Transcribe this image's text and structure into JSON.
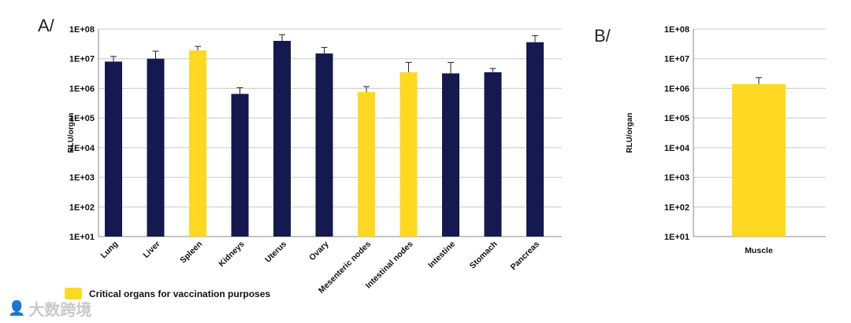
{
  "labels": {
    "panel_a": "A/",
    "panel_b": "B/"
  },
  "legend": {
    "label": "Critical organs for vaccination purposes",
    "color": "#FFD921"
  },
  "colors": {
    "navy": "#141A4F",
    "yellow": "#FFD921",
    "grid": "#c8c8c8",
    "axis": "#888888"
  },
  "watermark": {
    "text": "大数跨境",
    "icon": "logo-glyph"
  },
  "chart_data": [
    {
      "type": "bar",
      "panel": "A/",
      "ylabel": "RLU/organ",
      "scale": "log",
      "ylim": [
        10.0,
        100000000.0
      ],
      "yticks": [
        "1E+01",
        "1E+02",
        "1E+03",
        "1E+04",
        "1E+05",
        "1E+06",
        "1E+07",
        "1E+08"
      ],
      "grid": true,
      "categories": [
        "Lung",
        "Liver",
        "Spleen",
        "Kidneys",
        "Uterus",
        "Ovary",
        "Mesenteric nodes",
        "Intestinal nodes",
        "Intestine",
        "Stomach",
        "Pancreas"
      ],
      "values": [
        8000000,
        10000000,
        19000000,
        650000,
        40000000,
        15000000,
        750000,
        3500000,
        3200000,
        3500000,
        36000000
      ],
      "error_upper": [
        12000000,
        18000000,
        26000000,
        1050000,
        65000000,
        24000000,
        1150000,
        7500000,
        7500000,
        4700000,
        60000000
      ],
      "highlight": [
        false,
        false,
        true,
        false,
        false,
        false,
        true,
        true,
        false,
        false,
        false
      ]
    },
    {
      "type": "bar",
      "panel": "B/",
      "ylabel": "RLU/organ",
      "scale": "log",
      "ylim": [
        10.0,
        100000000.0
      ],
      "yticks": [
        "1E+01",
        "1E+02",
        "1E+03",
        "1E+04",
        "1E+05",
        "1E+06",
        "1E+07",
        "1E+08"
      ],
      "grid": true,
      "categories": [
        "Muscle"
      ],
      "values": [
        1400000
      ],
      "error_upper": [
        2300000
      ],
      "highlight": [
        true
      ]
    }
  ]
}
